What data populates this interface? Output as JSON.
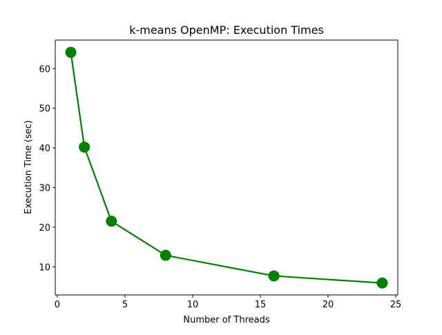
{
  "chart_data": {
    "type": "line",
    "title": "k-means OpenMP: Execution Times",
    "xlabel": "Number of Threads",
    "ylabel": "Execution Time (sec)",
    "xlim": [
      -0.15,
      25.15
    ],
    "ylim": [
      2.9,
      67.2
    ],
    "xticks": [
      0,
      5,
      10,
      15,
      20,
      25
    ],
    "yticks": [
      10,
      20,
      30,
      40,
      50,
      60
    ],
    "grid": false,
    "legend": "none",
    "series": [
      {
        "color": "#008000",
        "marker": "circle",
        "x": [
          1,
          2,
          4,
          8,
          16,
          24
        ],
        "y": [
          64.1,
          40.2,
          21.5,
          12.9,
          7.7,
          5.9
        ]
      }
    ]
  }
}
